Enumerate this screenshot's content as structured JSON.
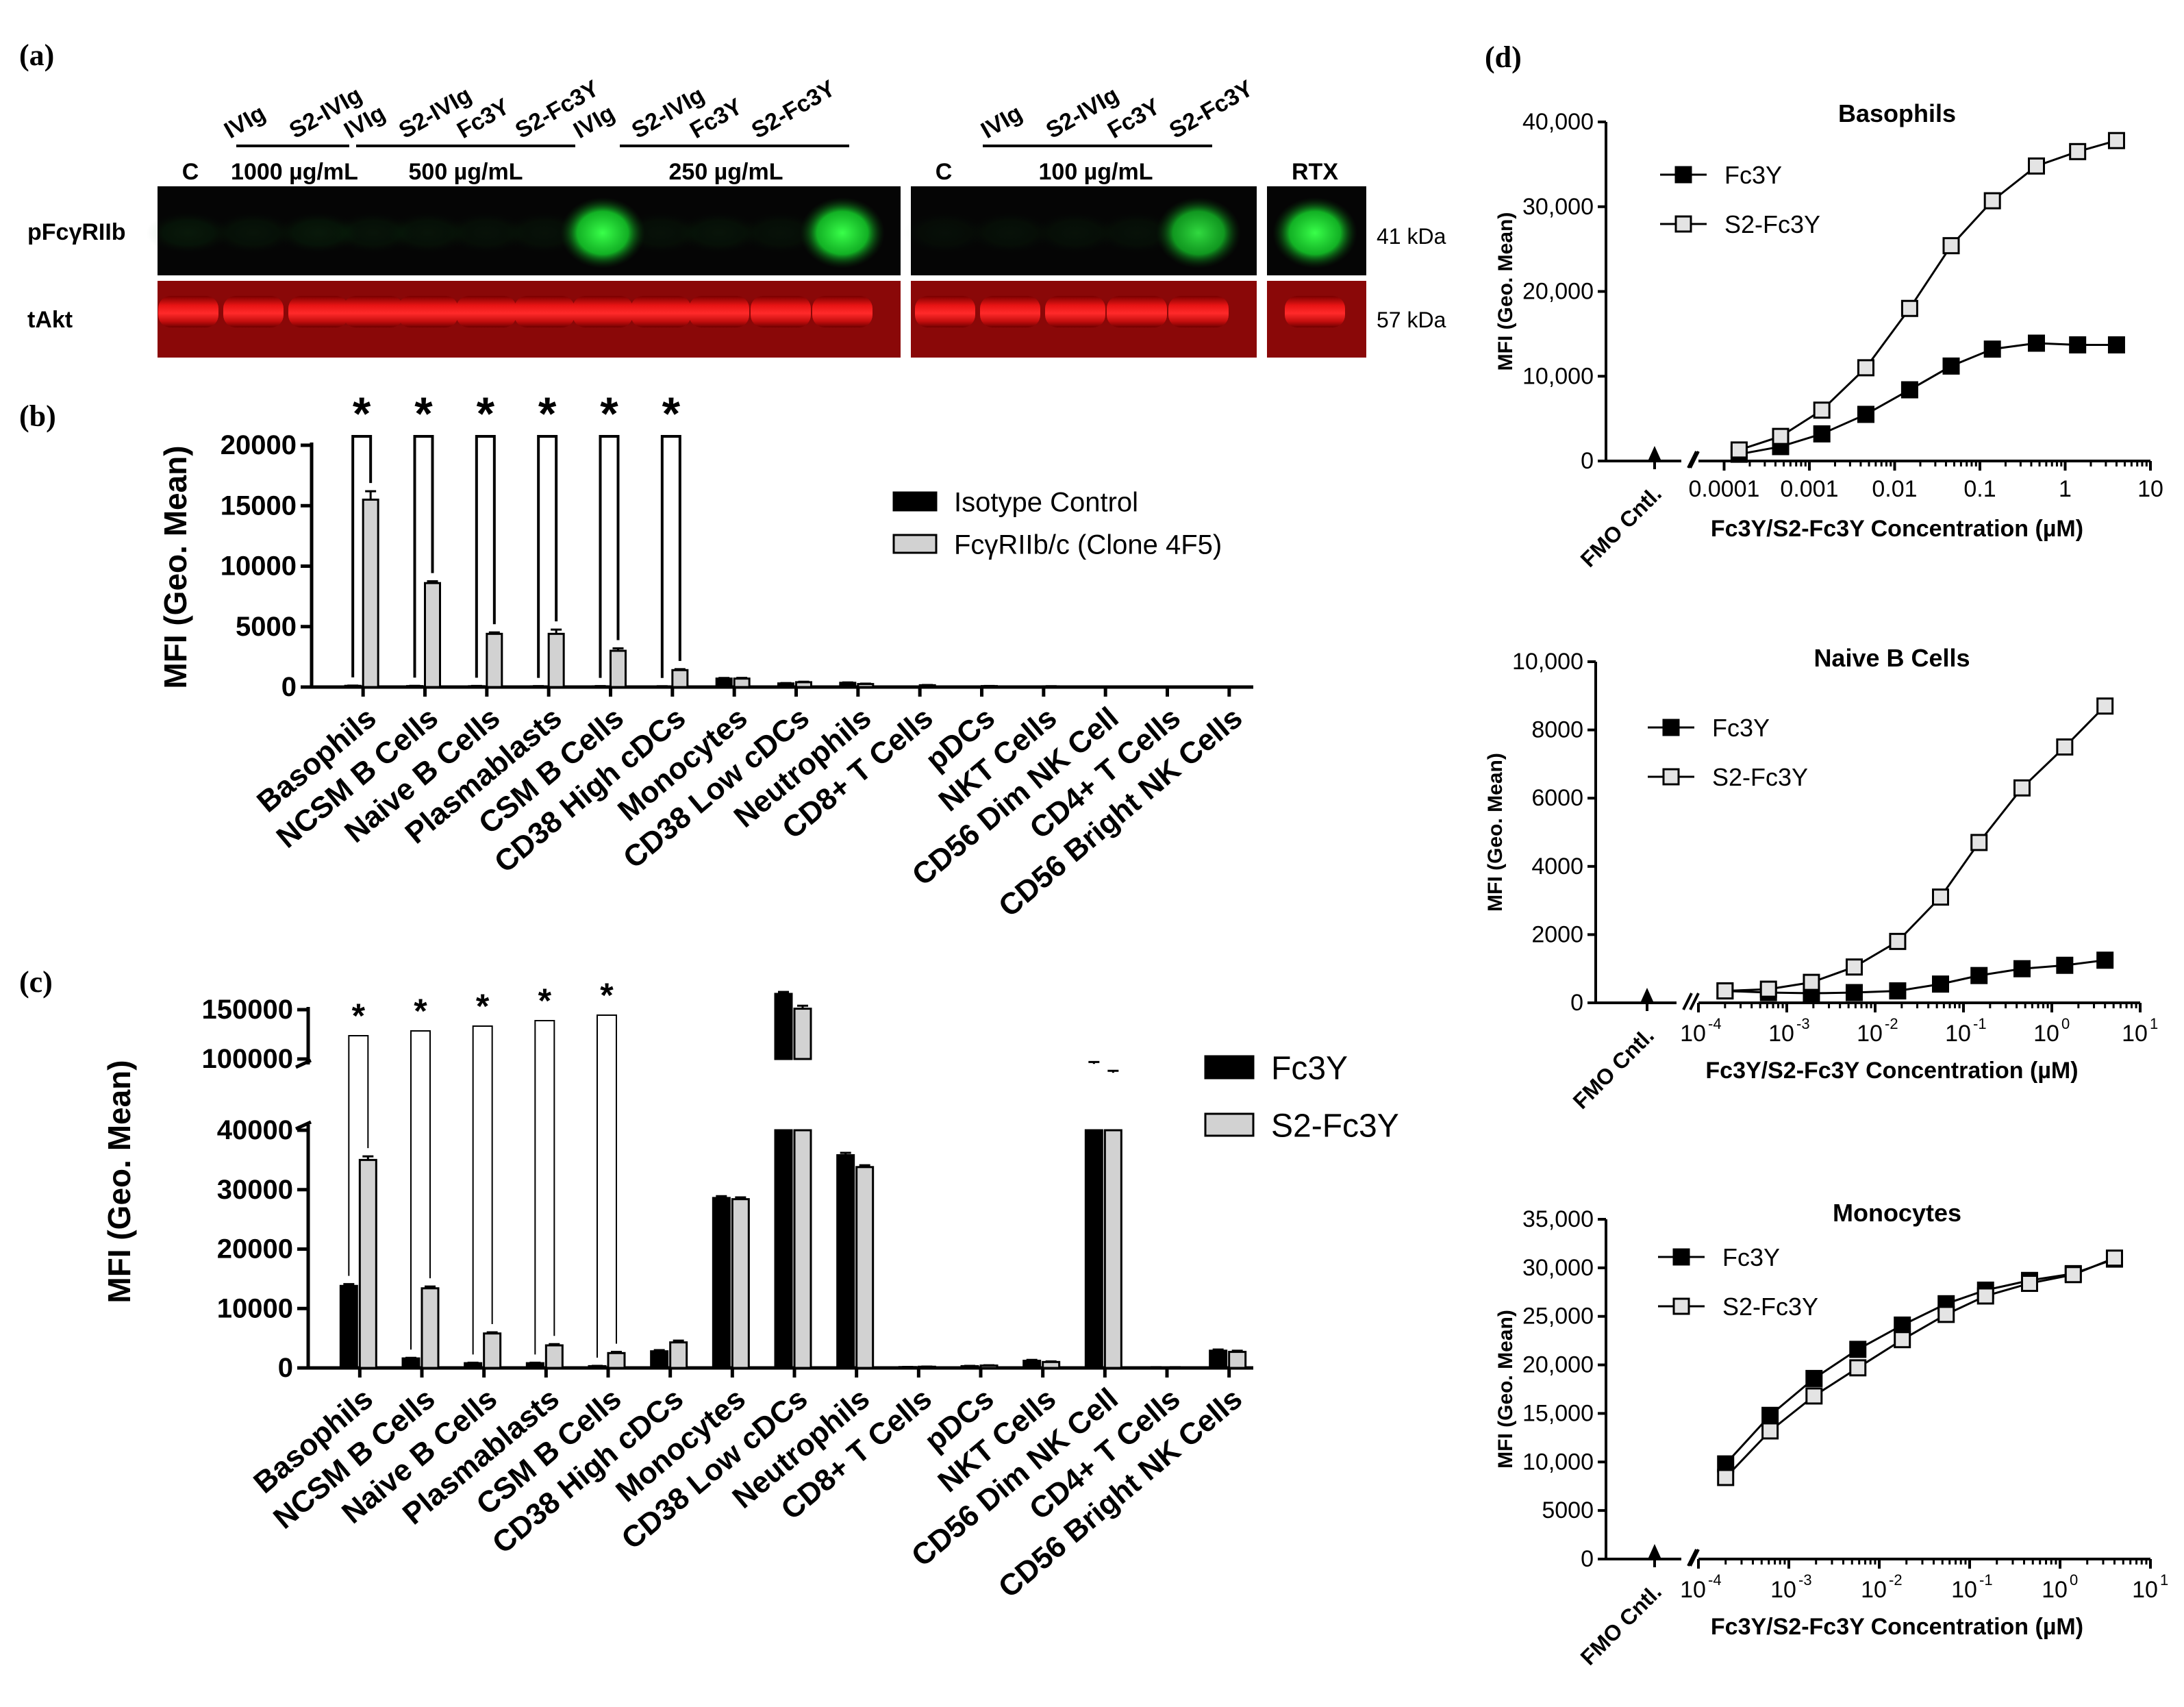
{
  "colors": {
    "black": "#000000",
    "grey": "#d2d2d2",
    "green": "#27e03a",
    "red": "#e01313",
    "blot_bg": "#050505"
  },
  "panel_a": {
    "label": "(a)",
    "row_labels": [
      "pFcγRIIb",
      "tAkt"
    ],
    "mw_labels": [
      "41 kDa",
      "57 kDa"
    ],
    "control_label": "C",
    "rtx_label": "RTX",
    "conc_groups": [
      {
        "text": "1000 µg/mL",
        "lanes": [
          "IVIg",
          "S2-IVIg"
        ]
      },
      {
        "text": "500 µg/mL",
        "lanes": [
          "IVIg",
          "S2-IVIg",
          "Fc3Y",
          "S2-Fc3Y"
        ]
      },
      {
        "text": "250 µg/mL",
        "lanes": [
          "IVIg",
          "S2-IVIg",
          "Fc3Y",
          "S2-Fc3Y"
        ]
      },
      {
        "text": "100 µg/mL",
        "lanes": [
          "IVIg",
          "S2-IVIg",
          "Fc3Y",
          "S2-Fc3Y"
        ]
      }
    ],
    "green_band_intensity_membrane1": [
      0.08,
      0.06,
      0.08,
      0.06,
      0.06,
      0.05,
      0.05,
      1.0,
      0.05,
      0.06,
      0.05,
      1.0
    ],
    "green_band_intensity_membrane2": [
      0.04,
      0.05,
      0.05,
      0.05,
      0.85
    ],
    "green_band_intensity_rtx": [
      1.0
    ]
  },
  "chart_data": [
    {
      "id": "b",
      "label": "(b)",
      "type": "bar",
      "ylabel": "MFI (Geo. Mean)",
      "ylim": [
        0,
        20000
      ],
      "yticks": [
        0,
        5000,
        10000,
        15000,
        20000
      ],
      "ytick_labels": [
        "0",
        "5000",
        "10000",
        "15000",
        "20000"
      ],
      "categories": [
        "Basophils",
        "NCSM B Cells",
        "Naive B Cells",
        "Plasmablasts",
        "CSM B Cells",
        "CD38 High cDCs",
        "Monocytes",
        "CD38 Low cDCs",
        "Neutrophils",
        "CD8+ T Cells",
        "pDCs",
        "NKT Cells",
        "CD56 Dim NK Cell",
        "CD4+ T Cells",
        "CD56 Bright NK Cells"
      ],
      "series": [
        {
          "name": "Isotype Control",
          "color": "#000000",
          "values": [
            100,
            80,
            70,
            60,
            60,
            50,
            700,
            300,
            350,
            50,
            30,
            40,
            40,
            20,
            20
          ],
          "errors": [
            20,
            20,
            20,
            20,
            20,
            20,
            50,
            30,
            30,
            10,
            10,
            10,
            10,
            10,
            10
          ]
        },
        {
          "name": "FcγRIIb/c (Clone 4F5)",
          "color": "#d2d2d2",
          "values": [
            15500,
            8600,
            4400,
            4400,
            3000,
            1400,
            700,
            400,
            250,
            150,
            80,
            60,
            50,
            40,
            30
          ],
          "errors": [
            700,
            150,
            120,
            350,
            200,
            80,
            60,
            40,
            30,
            20,
            10,
            10,
            10,
            10,
            10
          ]
        }
      ],
      "significance": [
        "*",
        "*",
        "*",
        "*",
        "*",
        "*"
      ],
      "legend_position": "top-right"
    },
    {
      "id": "c",
      "label": "(c)",
      "type": "bar",
      "ylabel": "MFI (Geo. Mean)",
      "y_broken": true,
      "ylim_lower": [
        0,
        40000
      ],
      "ylim_upper": [
        100000,
        150000
      ],
      "yticks_lower": [
        0,
        10000,
        20000,
        30000,
        40000
      ],
      "ytick_labels_lower": [
        "0",
        "10000",
        "20000",
        "30000",
        "40000"
      ],
      "yticks_upper": [
        100000,
        150000
      ],
      "ytick_labels_upper": [
        "100000",
        "150000"
      ],
      "categories": [
        "Basophils",
        "NCSM B Cells",
        "Naive B Cells",
        "Plasmablasts",
        "CSM B Cells",
        "CD38 High cDCs",
        "Monocytes",
        "CD38 Low cDCs",
        "Neutrophils",
        "CD8+ T Cells",
        "pDCs",
        "NKT Cells",
        "CD56 Dim NK Cell",
        "CD4+ T Cells",
        "CD56 Bright NK Cells"
      ],
      "series": [
        {
          "name": "Fc3Y",
          "color": "#000000",
          "values": [
            13800,
            1600,
            800,
            800,
            300,
            2800,
            28600,
            166000,
            35800,
            150,
            300,
            1200,
            95000,
            100,
            2900
          ],
          "errors": [
            300,
            100,
            80,
            80,
            50,
            200,
            300,
            2000,
            400,
            30,
            50,
            150,
            2000,
            30,
            200
          ]
        },
        {
          "name": "S2-Fc3Y",
          "color": "#d2d2d2",
          "values": [
            35000,
            13400,
            5800,
            3800,
            2500,
            4300,
            28400,
            151000,
            33800,
            200,
            400,
            1000,
            86000,
            100,
            2700
          ],
          "errors": [
            600,
            300,
            200,
            200,
            200,
            300,
            300,
            3000,
            300,
            30,
            50,
            100,
            2000,
            30,
            200
          ]
        }
      ],
      "significance": [
        "*",
        "*",
        "*",
        "*",
        "*"
      ],
      "legend_position": "top-right"
    },
    {
      "id": "d1",
      "label": "(d)",
      "type": "line",
      "title": "Basophils",
      "ylabel": "MFI (Geo. Mean)",
      "xlabel": "Fc3Y/S2-Fc3Y Concentration (µM)",
      "x_scale": "log",
      "xlim": [
        5e-05,
        10
      ],
      "xticks": [
        0.0001,
        0.001,
        0.01,
        0.1,
        1,
        10
      ],
      "xtick_labels": [
        "0.0001",
        "0.001",
        "0.01",
        "0.1",
        "1",
        "10"
      ],
      "ylim": [
        0,
        40000
      ],
      "yticks": [
        0,
        10000,
        20000,
        30000,
        40000
      ],
      "ytick_labels": [
        "0",
        "10,000",
        "20,000",
        "30,000",
        "40,000"
      ],
      "fmo_label": "FMO Cntl.",
      "x": [
        0.00015,
        0.00046,
        0.0014,
        0.0046,
        0.015,
        0.046,
        0.14,
        0.46,
        1.4,
        4.0
      ],
      "series": [
        {
          "name": "Fc3Y",
          "marker": "filled-square",
          "values": [
            800,
            1700,
            3200,
            5500,
            8400,
            11200,
            13200,
            13900,
            13700,
            13700
          ]
        },
        {
          "name": "S2-Fc3Y",
          "marker": "open-square",
          "values": [
            1300,
            2900,
            6000,
            11000,
            18000,
            25400,
            30700,
            34800,
            36500,
            37800
          ]
        }
      ],
      "legend_position": "top-left"
    },
    {
      "id": "d2",
      "type": "line",
      "title": "Naive B Cells",
      "ylabel": "MFI (Geo. Mean)",
      "xlabel": "Fc3Y/S2-Fc3Y Concentration (µM)",
      "x_scale": "log",
      "xlim": [
        0.0001,
        10
      ],
      "xticks": [
        0.0001,
        0.001,
        0.01,
        0.1,
        1,
        10
      ],
      "xtick_labels_base": "10",
      "xtick_labels_exp": [
        "-4",
        "-3",
        "-2",
        "-1",
        "0",
        "1"
      ],
      "ylim": [
        0,
        10000
      ],
      "yticks": [
        0,
        2000,
        4000,
        6000,
        8000,
        10000
      ],
      "ytick_labels": [
        "0",
        "2000",
        "4000",
        "6000",
        "8000",
        "10,000"
      ],
      "fmo_label": "FMO Cntl.",
      "x": [
        0.0002,
        0.00062,
        0.0019,
        0.0058,
        0.018,
        0.055,
        0.15,
        0.46,
        1.4,
        4.0
      ],
      "series": [
        {
          "name": "Fc3Y",
          "marker": "filled-square",
          "values": [
            350,
            300,
            280,
            300,
            350,
            550,
            800,
            1000,
            1100,
            1250
          ]
        },
        {
          "name": "S2-Fc3Y",
          "marker": "open-square",
          "values": [
            350,
            400,
            600,
            1050,
            1800,
            3100,
            4700,
            6300,
            7500,
            8700
          ]
        }
      ],
      "legend_position": "top-left"
    },
    {
      "id": "d3",
      "type": "line",
      "title": "Monocytes",
      "ylabel": "MFI (Geo. Mean)",
      "xlabel": "Fc3Y/S2-Fc3Y Concentration (µM)",
      "x_scale": "log",
      "xlim": [
        0.0001,
        10
      ],
      "xticks": [
        0.0001,
        0.001,
        0.01,
        0.1,
        1,
        10
      ],
      "xtick_labels_base": "10",
      "xtick_labels_exp": [
        "-4",
        "-3",
        "-2",
        "-1",
        "0",
        "1"
      ],
      "ylim": [
        0,
        35000
      ],
      "yticks": [
        0,
        5000,
        10000,
        15000,
        20000,
        25000,
        30000,
        35000
      ],
      "ytick_labels": [
        "0",
        "5000",
        "10,000",
        "15,000",
        "20,000",
        "25,000",
        "30,000",
        "35,000"
      ],
      "fmo_label": "FMO Cntl.",
      "x": [
        0.0002,
        0.00062,
        0.0019,
        0.0058,
        0.018,
        0.055,
        0.15,
        0.46,
        1.4,
        4.0
      ],
      "series": [
        {
          "name": "Fc3Y",
          "marker": "filled-square",
          "values": [
            9800,
            14800,
            18600,
            21600,
            24100,
            26300,
            27700,
            28700,
            29400,
            30900
          ]
        },
        {
          "name": "S2-Fc3Y",
          "marker": "open-square",
          "values": [
            8400,
            13200,
            16800,
            19700,
            22600,
            25200,
            27100,
            28400,
            29300,
            31000
          ]
        }
      ],
      "legend_position": "top-left"
    }
  ]
}
